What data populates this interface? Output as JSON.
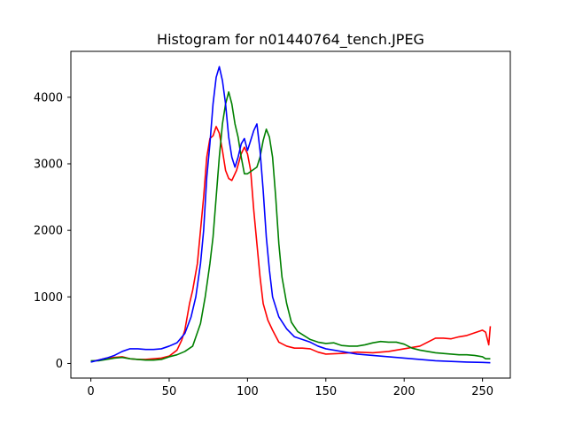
{
  "chart_data": {
    "type": "line",
    "title": "Histogram for n01440764_tench.JPEG",
    "xlabel": "",
    "ylabel": "",
    "xlim": [
      -12.75,
      267.75
    ],
    "ylim": [
      -220,
      4690
    ],
    "xticks": [
      0,
      50,
      100,
      150,
      200,
      250
    ],
    "yticks": [
      0,
      1000,
      2000,
      3000,
      4000
    ],
    "grid": false,
    "legend": "none",
    "series": [
      {
        "color": "#ff0000",
        "points": [
          [
            0,
            30
          ],
          [
            5,
            50
          ],
          [
            10,
            80
          ],
          [
            15,
            90
          ],
          [
            20,
            100
          ],
          [
            25,
            70
          ],
          [
            30,
            60
          ],
          [
            35,
            60
          ],
          [
            40,
            70
          ],
          [
            45,
            80
          ],
          [
            50,
            110
          ],
          [
            55,
            200
          ],
          [
            58,
            350
          ],
          [
            60,
            500
          ],
          [
            63,
            900
          ],
          [
            65,
            1100
          ],
          [
            68,
            1500
          ],
          [
            70,
            2000
          ],
          [
            72,
            2500
          ],
          [
            74,
            3100
          ],
          [
            76,
            3380
          ],
          [
            78,
            3420
          ],
          [
            80,
            3560
          ],
          [
            82,
            3460
          ],
          [
            84,
            3200
          ],
          [
            86,
            2900
          ],
          [
            88,
            2780
          ],
          [
            90,
            2750
          ],
          [
            93,
            2900
          ],
          [
            96,
            3150
          ],
          [
            98,
            3250
          ],
          [
            100,
            3150
          ],
          [
            102,
            2900
          ],
          [
            104,
            2300
          ],
          [
            106,
            1800
          ],
          [
            108,
            1300
          ],
          [
            110,
            900
          ],
          [
            113,
            650
          ],
          [
            116,
            500
          ],
          [
            120,
            320
          ],
          [
            125,
            260
          ],
          [
            130,
            230
          ],
          [
            135,
            230
          ],
          [
            140,
            220
          ],
          [
            145,
            170
          ],
          [
            150,
            140
          ],
          [
            160,
            150
          ],
          [
            170,
            170
          ],
          [
            180,
            160
          ],
          [
            190,
            180
          ],
          [
            200,
            220
          ],
          [
            210,
            260
          ],
          [
            215,
            320
          ],
          [
            220,
            380
          ],
          [
            225,
            380
          ],
          [
            230,
            370
          ],
          [
            235,
            400
          ],
          [
            240,
            420
          ],
          [
            245,
            460
          ],
          [
            250,
            500
          ],
          [
            252,
            470
          ],
          [
            254,
            280
          ],
          [
            255,
            560
          ]
        ]
      },
      {
        "color": "#008000",
        "points": [
          [
            0,
            40
          ],
          [
            5,
            40
          ],
          [
            10,
            60
          ],
          [
            15,
            80
          ],
          [
            20,
            90
          ],
          [
            25,
            70
          ],
          [
            30,
            60
          ],
          [
            35,
            50
          ],
          [
            40,
            50
          ],
          [
            45,
            60
          ],
          [
            50,
            100
          ],
          [
            55,
            130
          ],
          [
            60,
            180
          ],
          [
            65,
            260
          ],
          [
            70,
            600
          ],
          [
            73,
            1000
          ],
          [
            76,
            1500
          ],
          [
            78,
            1900
          ],
          [
            80,
            2500
          ],
          [
            82,
            3100
          ],
          [
            84,
            3600
          ],
          [
            86,
            3900
          ],
          [
            88,
            4080
          ],
          [
            90,
            3900
          ],
          [
            92,
            3600
          ],
          [
            94,
            3400
          ],
          [
            96,
            3100
          ],
          [
            98,
            2850
          ],
          [
            100,
            2850
          ],
          [
            103,
            2900
          ],
          [
            106,
            2950
          ],
          [
            108,
            3100
          ],
          [
            110,
            3350
          ],
          [
            112,
            3520
          ],
          [
            114,
            3400
          ],
          [
            116,
            3100
          ],
          [
            118,
            2500
          ],
          [
            120,
            1800
          ],
          [
            122,
            1300
          ],
          [
            125,
            900
          ],
          [
            128,
            620
          ],
          [
            132,
            480
          ],
          [
            136,
            420
          ],
          [
            140,
            360
          ],
          [
            145,
            320
          ],
          [
            150,
            300
          ],
          [
            155,
            310
          ],
          [
            160,
            270
          ],
          [
            165,
            260
          ],
          [
            170,
            260
          ],
          [
            175,
            280
          ],
          [
            180,
            310
          ],
          [
            185,
            330
          ],
          [
            190,
            320
          ],
          [
            195,
            320
          ],
          [
            200,
            290
          ],
          [
            205,
            230
          ],
          [
            210,
            200
          ],
          [
            215,
            180
          ],
          [
            220,
            160
          ],
          [
            225,
            150
          ],
          [
            230,
            140
          ],
          [
            235,
            130
          ],
          [
            240,
            130
          ],
          [
            245,
            120
          ],
          [
            250,
            100
          ],
          [
            252,
            70
          ],
          [
            255,
            70
          ]
        ]
      },
      {
        "color": "#0000ff",
        "points": [
          [
            0,
            20
          ],
          [
            5,
            50
          ],
          [
            10,
            80
          ],
          [
            15,
            120
          ],
          [
            20,
            180
          ],
          [
            25,
            220
          ],
          [
            30,
            220
          ],
          [
            35,
            210
          ],
          [
            40,
            210
          ],
          [
            45,
            220
          ],
          [
            50,
            260
          ],
          [
            55,
            310
          ],
          [
            60,
            450
          ],
          [
            64,
            700
          ],
          [
            67,
            1000
          ],
          [
            70,
            1500
          ],
          [
            72,
            2000
          ],
          [
            74,
            2800
          ],
          [
            76,
            3300
          ],
          [
            78,
            3900
          ],
          [
            80,
            4300
          ],
          [
            82,
            4460
          ],
          [
            84,
            4250
          ],
          [
            86,
            3900
          ],
          [
            88,
            3400
          ],
          [
            90,
            3100
          ],
          [
            92,
            2950
          ],
          [
            94,
            3100
          ],
          [
            96,
            3300
          ],
          [
            98,
            3380
          ],
          [
            100,
            3200
          ],
          [
            102,
            3350
          ],
          [
            104,
            3500
          ],
          [
            106,
            3600
          ],
          [
            108,
            3200
          ],
          [
            110,
            2600
          ],
          [
            112,
            1900
          ],
          [
            114,
            1400
          ],
          [
            116,
            1000
          ],
          [
            120,
            700
          ],
          [
            125,
            520
          ],
          [
            130,
            400
          ],
          [
            135,
            360
          ],
          [
            140,
            320
          ],
          [
            145,
            260
          ],
          [
            150,
            220
          ],
          [
            160,
            180
          ],
          [
            170,
            140
          ],
          [
            180,
            120
          ],
          [
            190,
            100
          ],
          [
            200,
            80
          ],
          [
            210,
            60
          ],
          [
            220,
            40
          ],
          [
            230,
            30
          ],
          [
            240,
            20
          ],
          [
            250,
            15
          ],
          [
            255,
            10
          ]
        ]
      }
    ]
  }
}
